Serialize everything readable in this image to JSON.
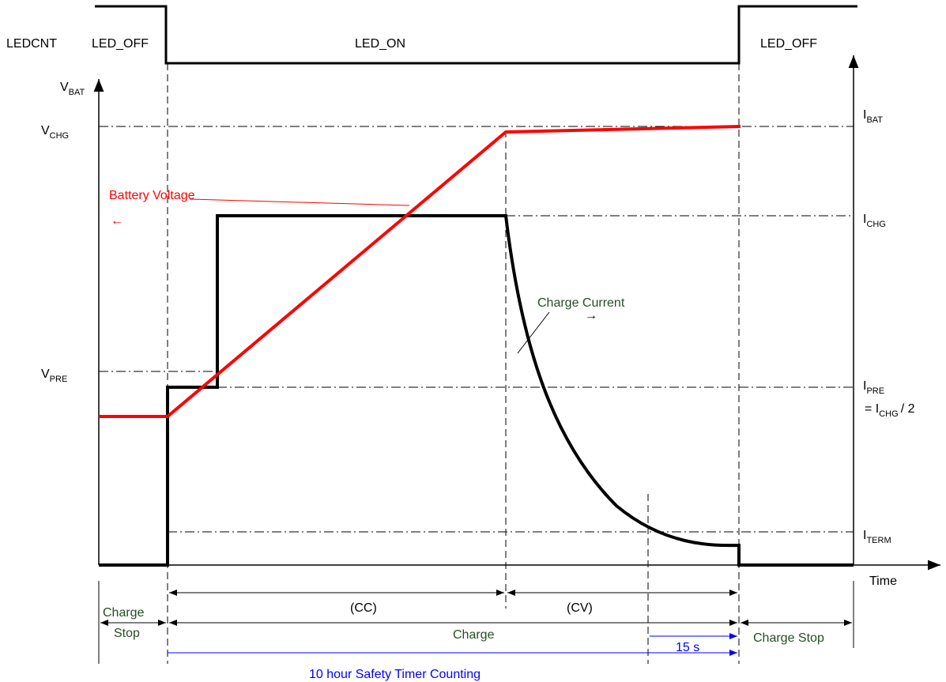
{
  "led": {
    "signal_label": "LEDCNT",
    "off_left": "LED_OFF",
    "on": "LED_ON",
    "off_right": "LED_OFF"
  },
  "axes": {
    "vbat_main": "V",
    "vbat_sub": "BAT",
    "ibat_main": "I",
    "ibat_sub": "BAT",
    "time": "Time"
  },
  "levels": {
    "vchg_main": "V",
    "vchg_sub": "CHG",
    "vpre_main": "V",
    "vpre_sub": "PRE",
    "ichg_main": "I",
    "ichg_sub": "CHG",
    "ipre_main": "I",
    "ipre_sub": "PRE",
    "ipre_eq_prefix": "= I",
    "ipre_eq_sub": "CHG",
    "ipre_eq_suffix": "/ 2",
    "iterm_main": "I",
    "iterm_sub": "TERM"
  },
  "curves": {
    "battery_voltage": "Battery Voltage",
    "charge_current": "Charge Current",
    "arrow_left": "←",
    "arrow_right": "→"
  },
  "phases": {
    "cc": "(CC)",
    "cv": "(CV)",
    "charge": "Charge",
    "charge_stop_left_1": "Charge",
    "charge_stop_left_2": "Stop",
    "charge_stop_right": "Charge Stop",
    "timer_15s": "15 s",
    "safety_timer": "10 hour Safety Timer Counting"
  },
  "colors": {
    "voltage": "#ff0000",
    "current": "#000000",
    "label_green": "#264d26",
    "timer_blue": "#0000ff"
  }
}
